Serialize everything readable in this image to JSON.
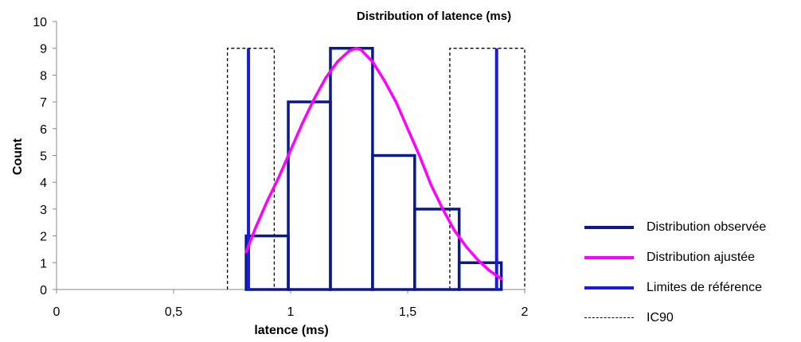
{
  "chart_data": {
    "type": "bar",
    "title": "Distribution of latence (ms)",
    "xlabel": "latence (ms)",
    "ylabel": "Count",
    "xlim": [
      0,
      2
    ],
    "ylim": [
      0,
      10
    ],
    "x_ticks": [
      "0",
      "0,5",
      "1",
      "1,5",
      "2"
    ],
    "y_ticks": [
      "0",
      "1",
      "2",
      "3",
      "4",
      "5",
      "6",
      "7",
      "8",
      "9",
      "10"
    ],
    "grid": false,
    "legend_position": "right",
    "histogram_bins": [
      {
        "x0": 0.81,
        "x1": 0.99,
        "count": 2
      },
      {
        "x0": 0.99,
        "x1": 1.17,
        "count": 7
      },
      {
        "x0": 1.17,
        "x1": 1.35,
        "count": 9
      },
      {
        "x0": 1.35,
        "x1": 1.53,
        "count": 5
      },
      {
        "x0": 1.53,
        "x1": 1.72,
        "count": 3
      },
      {
        "x0": 1.72,
        "x1": 1.9,
        "count": 1
      }
    ],
    "fitted_curve": {
      "x": [
        0.81,
        0.85,
        0.9,
        0.95,
        1.0,
        1.05,
        1.1,
        1.15,
        1.2,
        1.25,
        1.28,
        1.3,
        1.35,
        1.4,
        1.45,
        1.5,
        1.55,
        1.6,
        1.65,
        1.7,
        1.75,
        1.8,
        1.85,
        1.9
      ],
      "y": [
        1.4,
        2.3,
        3.3,
        4.2,
        5.2,
        6.2,
        7.1,
        7.9,
        8.5,
        8.9,
        9.0,
        8.95,
        8.5,
        7.8,
        7.0,
        6.0,
        5.0,
        3.9,
        3.0,
        2.2,
        1.6,
        1.1,
        0.7,
        0.4
      ]
    },
    "reference_limits": [
      0.82,
      1.88
    ],
    "reference_limit_height": 9,
    "ic90": [
      {
        "x0": 0.73,
        "x1": 0.93,
        "height": 9
      },
      {
        "x0": 1.68,
        "x1": 2.0,
        "height": 9
      }
    ],
    "series": [
      {
        "name": "Distribution observée",
        "color": "#0a1a8c",
        "style": "solid"
      },
      {
        "name": "Distribution ajustée",
        "color": "#ff00ff",
        "style": "solid"
      },
      {
        "name": "Limites de référence",
        "color": "#1c1cdc",
        "style": "solid"
      },
      {
        "name": "IC90",
        "color": "#000000",
        "style": "dashed"
      }
    ]
  }
}
